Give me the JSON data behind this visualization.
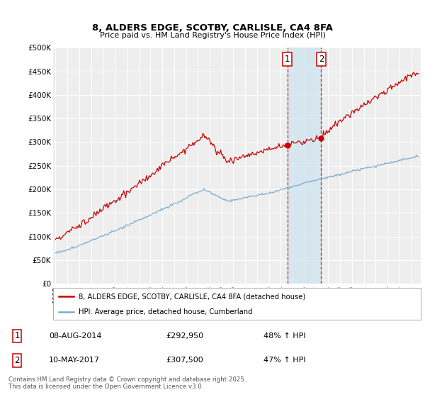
{
  "title": "8, ALDERS EDGE, SCOTBY, CARLISLE, CA4 8FA",
  "subtitle": "Price paid vs. HM Land Registry's House Price Index (HPI)",
  "red_label": "8, ALDERS EDGE, SCOTBY, CARLISLE, CA4 8FA (detached house)",
  "blue_label": "HPI: Average price, detached house, Cumberland",
  "transaction1_date": "08-AUG-2014",
  "transaction1_price": "£292,950",
  "transaction1_hpi": "48% ↑ HPI",
  "transaction1_price_val": 292950,
  "transaction2_date": "10-MAY-2017",
  "transaction2_price": "£307,500",
  "transaction2_hpi": "47% ↑ HPI",
  "transaction2_price_val": 307500,
  "transaction1_x": 2014.58,
  "transaction2_x": 2017.36,
  "ylim": [
    0,
    500000
  ],
  "xlim_start": 1994.8,
  "xlim_end": 2025.8,
  "footer": "Contains HM Land Registry data © Crown copyright and database right 2025.\nThis data is licensed under the Open Government Licence v3.0.",
  "background_color": "#ffffff",
  "plot_bg_color": "#eeeeee",
  "grid_color": "#ffffff",
  "red_color": "#cc0000",
  "blue_color": "#7aadcf",
  "shade_color": "#cce4f0"
}
